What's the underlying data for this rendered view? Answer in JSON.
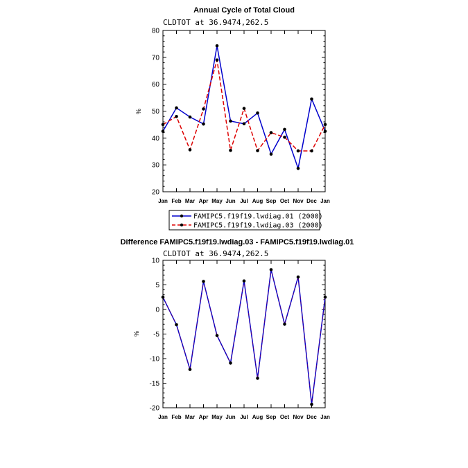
{
  "chart_data": [
    {
      "type": "line",
      "title": "Annual Cycle of Total Cloud",
      "subtitle": "CLDTOT at 36.9474,262.5",
      "xlabel": "",
      "ylabel": "%",
      "categories": [
        "Jan",
        "Feb",
        "Mar",
        "Apr",
        "May",
        "Jun",
        "Jul",
        "Aug",
        "Sep",
        "Oct",
        "Nov",
        "Dec",
        "Jan"
      ],
      "ylim": [
        20,
        80
      ],
      "yticks": [
        20,
        30,
        40,
        50,
        60,
        70,
        80
      ],
      "series": [
        {
          "name": "FAMIPC5.f19f19.lwdiag.01 (2000)",
          "color": "#0000cc",
          "dash": "solid",
          "values": [
            42.5,
            51.2,
            47.8,
            45.2,
            74.3,
            46.3,
            45.3,
            49.3,
            34.0,
            43.2,
            28.7,
            54.5,
            42.5
          ]
        },
        {
          "name": "FAMIPC5.f19f19.lwdiag.03 (2000)",
          "color": "#dd0000",
          "dash": "dashed",
          "values": [
            45.0,
            48.0,
            35.6,
            50.8,
            69.0,
            35.4,
            51.0,
            35.3,
            42.0,
            40.3,
            35.2,
            35.2,
            45.0
          ]
        }
      ],
      "legend": "below"
    },
    {
      "type": "line",
      "title": "Difference FAMIPC5.f19f19.lwdiag.03 - FAMIPC5.f19f19.lwdiag.01",
      "subtitle": "CLDTOT at 36.9474,262.5",
      "xlabel": "",
      "ylabel": "%",
      "categories": [
        "Jan",
        "Feb",
        "Mar",
        "Apr",
        "May",
        "Jun",
        "Jul",
        "Aug",
        "Sep",
        "Oct",
        "Nov",
        "Dec",
        "Jan"
      ],
      "ylim": [
        -20,
        10
      ],
      "yticks": [
        -20,
        -15,
        -10,
        -5,
        0,
        5,
        10
      ],
      "series": [
        {
          "name": "Difference",
          "color": "#0000cc",
          "dash": "solid",
          "values": [
            2.5,
            -3.1,
            -12.2,
            5.7,
            -5.3,
            -10.9,
            5.8,
            -14.0,
            8.1,
            -3.0,
            6.6,
            -19.3,
            2.5
          ]
        }
      ]
    }
  ]
}
